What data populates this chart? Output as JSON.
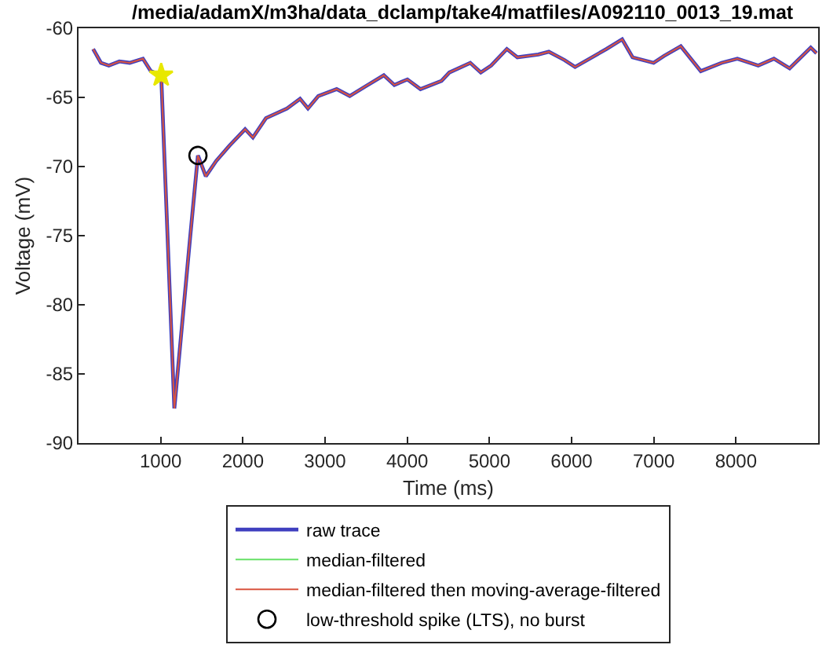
{
  "chart_data": {
    "type": "line",
    "title": "/media/adamX/m3ha/data_dclamp/take4/matfiles/A092110_0013_19.mat",
    "xlabel": "Time (ms)",
    "ylabel": "Voltage (mV)",
    "xlim": [
      0,
      9000
    ],
    "xticks": [
      1000,
      2000,
      3000,
      4000,
      5000,
      6000,
      7000,
      8000
    ],
    "ylim": [
      -90,
      -60
    ],
    "yticks": [
      -90,
      -85,
      -80,
      -75,
      -70,
      -65,
      -60
    ],
    "grid": false,
    "legend": "bottom",
    "line_style": "solid",
    "x": [
      178,
      273,
      369,
      497,
      623,
      784,
      880,
      1006,
      1166,
      1357,
      1453,
      1549,
      1675,
      1835,
      2027,
      2122,
      2281,
      2536,
      2696,
      2792,
      2918,
      3141,
      3300,
      3491,
      3715,
      3843,
      4002,
      4161,
      4417,
      4512,
      4767,
      4895,
      5021,
      5212,
      5340,
      5595,
      5723,
      5914,
      6042,
      6424,
      6615,
      6742,
      6998,
      7124,
      7329,
      7572,
      7826,
      8017,
      8271,
      8462,
      8653,
      8910,
      8980
    ],
    "series": [
      {
        "name": "raw trace",
        "color": "#3f3fbf",
        "values": [
          -61.5,
          -62.5,
          -62.7,
          -62.4,
          -62.5,
          -62.2,
          -63.1,
          -63.4,
          -87.5,
          -75.2,
          -69.2,
          -70.7,
          -69.6,
          -68.5,
          -67.3,
          -67.9,
          -66.5,
          -65.8,
          -65.1,
          -65.8,
          -64.9,
          -64.4,
          -64.9,
          -64.2,
          -63.4,
          -64.1,
          -63.7,
          -64.4,
          -63.8,
          -63.2,
          -62.5,
          -63.2,
          -62.7,
          -61.5,
          -62.1,
          -61.9,
          -61.7,
          -62.3,
          -62.8,
          -61.5,
          -60.8,
          -62.1,
          -62.5,
          -62.0,
          -61.3,
          -63.1,
          -62.5,
          -62.2,
          -62.7,
          -62.2,
          -62.9,
          -61.4,
          -61.8
        ]
      },
      {
        "name": "median-filtered",
        "color": "#66e066",
        "values": [
          null,
          null,
          null,
          null,
          null,
          null,
          null,
          null,
          null,
          null,
          null,
          null,
          null,
          null,
          null,
          null,
          null,
          null,
          null,
          null,
          null,
          null,
          null,
          null,
          null,
          null,
          null,
          null,
          null,
          null,
          null,
          null,
          null,
          null,
          null,
          null,
          null,
          null,
          null,
          null,
          null,
          null,
          null,
          null,
          null,
          null,
          null,
          null,
          null,
          null,
          null,
          null,
          null
        ]
      },
      {
        "name": "median-filtered then moving-average-filtered",
        "color": "#d9543f",
        "values": [
          -61.5,
          -62.5,
          -62.7,
          -62.4,
          -62.5,
          -62.2,
          -63.1,
          -63.4,
          -87.5,
          -75.2,
          -69.2,
          -70.7,
          -69.6,
          -68.5,
          -67.3,
          -67.9,
          -66.5,
          -65.8,
          -65.1,
          -65.8,
          -64.9,
          -64.4,
          -64.9,
          -64.2,
          -63.4,
          -64.1,
          -63.7,
          -64.4,
          -63.8,
          -63.2,
          -62.5,
          -63.2,
          -62.7,
          -61.5,
          -62.1,
          -61.9,
          -61.7,
          -62.3,
          -62.8,
          -61.5,
          -60.8,
          -62.1,
          -62.5,
          -62.0,
          -61.3,
          -63.1,
          -62.5,
          -62.2,
          -62.7,
          -62.2,
          -62.9,
          -61.4,
          -61.8
        ]
      },
      {
        "type": "scatter",
        "marker": "star",
        "color": "#e8e800",
        "x": [
          1006
        ],
        "values": [
          -63.4
        ]
      },
      {
        "type": "scatter",
        "marker": "circle",
        "name": "low-threshold spike (LTS), no burst",
        "color": "#000000",
        "x": [
          1453
        ],
        "values": [
          -69.2
        ]
      }
    ]
  }
}
